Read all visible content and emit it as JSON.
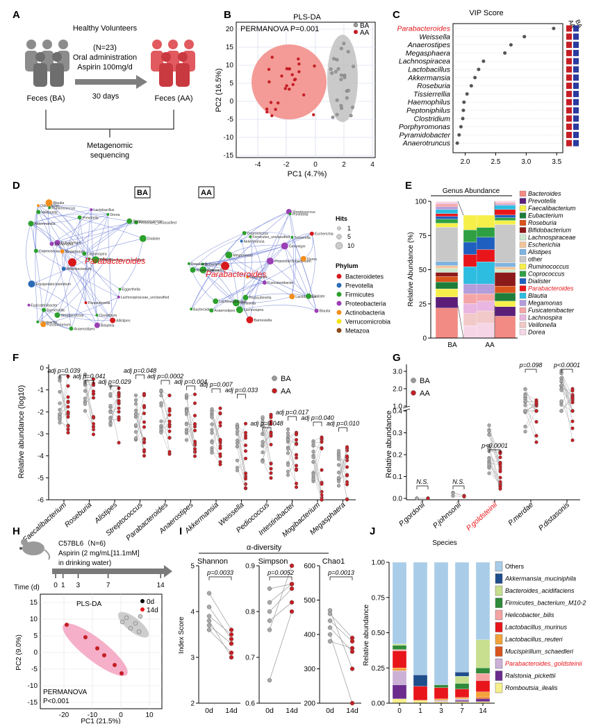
{
  "panel_labels": [
    "A",
    "B",
    "C",
    "D",
    "E",
    "F",
    "G",
    "H",
    "I",
    "J"
  ],
  "colors": {
    "ba": "#9a9a9a",
    "aa": "#c41e24",
    "red_fill": "#f28a85",
    "grey_fill": "#c9c9c9",
    "highlight": "#e8161b"
  },
  "panelA": {
    "title": "Healthy Volunteers",
    "n": "(N=23)",
    "admin1": "Oral administration",
    "admin2": "Aspirin 100mg/d",
    "days": "30 days",
    "feces_ba": "Feces (BA)",
    "feces_aa": "Feces (AA)",
    "seq1": "Metagenomic",
    "seq2": "sequencing"
  },
  "panelB": {
    "title": "PLS-DA",
    "permanova": "PERMANOVA  P=0.001",
    "legend": [
      "BA",
      "AA"
    ],
    "xlabel": "PC1 (4.7%)",
    "ylabel": "PC2 (16.5%)",
    "xticks": [
      "-4",
      "-2",
      "0",
      "2",
      "4"
    ],
    "yticks": [
      "20",
      "15",
      "10",
      "5",
      "0",
      "-5",
      "-10",
      "-15"
    ]
  },
  "chart_data": [
    {
      "id": "vip",
      "type": "scatter",
      "title": "VIP Score",
      "col_labels": [
        "AA",
        "BA"
      ],
      "categories": [
        "Parabacteroides",
        "Weissella",
        "Anaerostipes",
        "Megasphaera",
        "Lachnospiracea",
        "Lactobacillus",
        "Akkermansia",
        "Roseburia",
        "Tissierrellia",
        "Haemophilus",
        "Peptoniphilus",
        "Clostridium",
        "Porphyromonas",
        "Pyramidobacter",
        "Anaerotruncus"
      ],
      "values": [
        3.45,
        2.97,
        2.75,
        2.65,
        2.3,
        2.22,
        2.16,
        2.1,
        2.03,
        1.98,
        1.97,
        1.96,
        1.93,
        1.9,
        1.87
      ],
      "highlight": "Parabacteroides",
      "xticks": [
        "2.0",
        "2.5",
        "3.0",
        "3.5"
      ],
      "xlim": [
        1.8,
        3.6
      ]
    },
    {
      "id": "genus",
      "type": "bar",
      "title": "Genus Abundance",
      "ylabel": "Relative Abundance (%)",
      "yticks": [
        "0",
        "25",
        "50",
        "75",
        "100"
      ],
      "categories": [
        "BA",
        "AA"
      ],
      "legend": [
        "Bacteroides",
        "Prevotella",
        "Faecalibacterium",
        "Eubacterium",
        "Roseburia",
        "Bifidobacterium",
        "Lachnospiraceae",
        "Escherichia",
        "Alistipes",
        "other",
        "Ruminococcus",
        "Coprococcus",
        "Dialister",
        "Parabacteroides",
        "Blautia",
        "Megamonas",
        "Fusicatenibacter",
        "Lachnospira",
        "Veillonella",
        "Dorea"
      ],
      "highlight": "Parabacteroides"
    },
    {
      "id": "relabund",
      "type": "scatter",
      "ylabel": "Relative abundance (log10)",
      "yticks": [
        "0",
        "-1",
        "-2",
        "-3",
        "-4",
        "-5",
        "-6"
      ],
      "categories": [
        "Faecalibacterium",
        "Roseburia",
        "Alistipes",
        "Streptococcus",
        "Parabacteroides",
        "Anaerostipes",
        "Akkermansia",
        "Weissella",
        "Pediococcus",
        "Intestinibacter",
        "Mogibacterium",
        "Megasphaera"
      ],
      "pvalues": [
        "adj p=0.039",
        "adj p=0.041",
        "adj p=0.029",
        "adj p=0.048",
        "adj p=0.0002",
        "adj p=0.004",
        "adj p=0.007",
        "adj p=0.033",
        "adj p=0.048",
        "adj p=0.017",
        "adj p=0.040",
        "adj p=0.010"
      ],
      "legend": [
        "BA",
        "AA"
      ]
    },
    {
      "id": "species",
      "type": "scatter",
      "ylabel": "Relative abundance",
      "yticks": [
        "3.0",
        "2.0",
        "1.0",
        "0.4",
        "0.3",
        "0.2",
        "0.1",
        "0.0"
      ],
      "categories": [
        "P.gordonii",
        "P.johnsonii",
        "P.goldsteinii",
        "P.merdae",
        "P.distasonis"
      ],
      "pvalues": [
        "N.S.",
        "N.S.",
        "p<0.0001",
        "p=0.098",
        "p<0.0001"
      ],
      "highlight": "P.goldsteinii",
      "legend": [
        "BA",
        "AA"
      ]
    },
    {
      "id": "mouse_plsda",
      "type": "scatter",
      "title": "PLS-DA",
      "xlabel": "PC1 (21.5%)",
      "ylabel": "PC2 (9.0%)",
      "xticks": [
        "-20",
        "-10",
        "0",
        "10"
      ],
      "yticks": [
        "15",
        "10",
        "5",
        "0",
        "-5",
        "-10",
        "-15"
      ],
      "legend": [
        "0d",
        "14d"
      ],
      "permanova1": "PERMANOVA",
      "permanova2": "P<0.001"
    },
    {
      "id": "alpha",
      "type": "line",
      "title": "α-diversity",
      "ylabel": "Index Score",
      "categories": [
        "0d",
        "14d"
      ],
      "panels": [
        {
          "name": "Shannon",
          "p": "p=0.0033",
          "yticks": [
            "5",
            "4",
            "3",
            "2"
          ],
          "ylim": [
            2,
            5
          ]
        },
        {
          "name": "Simpson",
          "p": "p=0.0052",
          "yticks": [
            "0.9",
            "0.8",
            "0.7",
            "0.6"
          ],
          "ylim": [
            0.6,
            0.9
          ]
        },
        {
          "name": "Chao1",
          "p": "p=0.0013",
          "yticks": [
            "600",
            "500",
            "400",
            "300",
            "200"
          ],
          "ylim": [
            200,
            600
          ]
        }
      ]
    },
    {
      "id": "species_stack",
      "type": "bar",
      "title": "Species",
      "ylabel": "Relative abundance",
      "yticks": [
        "1.00",
        "0.75",
        "0.50",
        "0.25",
        "0.00"
      ],
      "categories": [
        "0",
        "1",
        "3",
        "7",
        "14"
      ],
      "legend": [
        "Others",
        "Akkermansia_muciniphila",
        "Bacteroides_acidifaciens",
        "Firmicutes_bacterium_M10-2",
        "Helicobacter_bilis",
        "Lactobacillus_murinus",
        "Lactobacillus_reuteri",
        "Mucispirillum_schaedleri",
        "Parabacteroides_goldsteinii",
        "Ralstonia_pickettii",
        "Romboutsia_ilealis"
      ],
      "highlight": "Parabacteroides_goldsteinii"
    }
  ],
  "panelD": {
    "ba_label": "BA",
    "aa_label": "AA",
    "para_label": "Parabacteroides",
    "hits_title": "Hits",
    "hits": [
      "1",
      "5",
      "10"
    ],
    "phylum_title": "Phylum",
    "phyla": [
      "Bacteroidetes",
      "Prevotella",
      "Firmicutes",
      "Proteobacteria",
      "Actinobacteria",
      "Verrucomicrobia",
      "Metazoa"
    ],
    "ba_nodes": [
      "Barnesiella",
      "Dialister",
      "Akkermansia",
      "Lachnospiraceae_unclassified",
      "Allistipes",
      "Streptococcus",
      "Ruminococcus",
      "Odoribacter",
      "Clostridium",
      "Firmicutes_unclassified",
      "Lactobacillus",
      "Bifidobacterium",
      "Coprococcus",
      "Eubacterium",
      "Ruminococcaceae",
      "Blautia",
      "Dorea",
      "Prevotella",
      "Agathobacter",
      "Fusicatenibacter",
      "Parasutterella",
      "Anaerostipes",
      "Eggerthella",
      "Megamonas",
      "Citrobacter",
      "Veillonella",
      "Escherichia",
      "Erysipelatoclostridium",
      "Lachnospira",
      "Bilophila",
      "Proteobacteria_unclassified",
      "Fusobacterium"
    ],
    "aa_nodes": [
      "Weissella",
      "Firmicutes_unclassified",
      "Tyzzerella",
      "Phascolarctobacterium",
      "Barnesiella",
      "Collinsella",
      "Coprococcus",
      "Lactobacillus",
      "Lachnospiraceae",
      "Eubacterium",
      "Streptococcus",
      "Akkermansia",
      "Roseburia",
      "Gemmiger",
      "Ruminococcus",
      "Citrobacter",
      "Bacteroides",
      "Parasutterella",
      "Prevotella",
      "Blautia",
      "Escherichia",
      "Megamonas",
      "Dialister",
      "Dorea",
      "Lachnospira",
      "Anaerostipes",
      "Fusicatenibacter"
    ]
  },
  "panelH": {
    "strain": "C57BL6（N=6)",
    "drug1": "Aspirin (2 mg/mL[11.1mM]",
    "drug2": "in drinking water)",
    "time_label": "Time (d)",
    "time_ticks": [
      "0",
      "1",
      "3",
      "7",
      "14"
    ]
  }
}
